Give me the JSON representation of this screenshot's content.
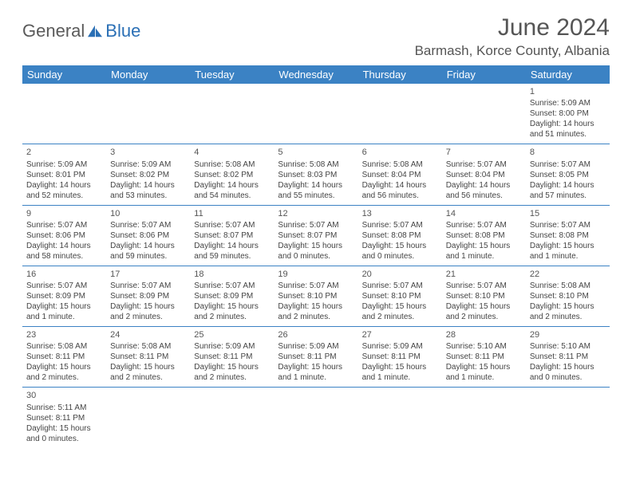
{
  "logo": {
    "part1": "General",
    "part2": "Blue"
  },
  "title": "June 2024",
  "location": "Barmash, Korce County, Albania",
  "colors": {
    "header_bg": "#3b82c4",
    "header_text": "#ffffff",
    "shade_bg": "#eef0f1",
    "border": "#3b82c4",
    "logo_gray": "#5a5a5a",
    "logo_blue": "#2a6fb5",
    "text": "#444444"
  },
  "weekdays": [
    "Sunday",
    "Monday",
    "Tuesday",
    "Wednesday",
    "Thursday",
    "Friday",
    "Saturday"
  ],
  "weeks": [
    [
      null,
      null,
      null,
      null,
      null,
      null,
      {
        "n": "1",
        "sr": "Sunrise: 5:09 AM",
        "ss": "Sunset: 8:00 PM",
        "d1": "Daylight: 14 hours",
        "d2": "and 51 minutes."
      }
    ],
    [
      {
        "n": "2",
        "sr": "Sunrise: 5:09 AM",
        "ss": "Sunset: 8:01 PM",
        "d1": "Daylight: 14 hours",
        "d2": "and 52 minutes."
      },
      {
        "n": "3",
        "sr": "Sunrise: 5:09 AM",
        "ss": "Sunset: 8:02 PM",
        "d1": "Daylight: 14 hours",
        "d2": "and 53 minutes."
      },
      {
        "n": "4",
        "sr": "Sunrise: 5:08 AM",
        "ss": "Sunset: 8:02 PM",
        "d1": "Daylight: 14 hours",
        "d2": "and 54 minutes."
      },
      {
        "n": "5",
        "sr": "Sunrise: 5:08 AM",
        "ss": "Sunset: 8:03 PM",
        "d1": "Daylight: 14 hours",
        "d2": "and 55 minutes."
      },
      {
        "n": "6",
        "sr": "Sunrise: 5:08 AM",
        "ss": "Sunset: 8:04 PM",
        "d1": "Daylight: 14 hours",
        "d2": "and 56 minutes."
      },
      {
        "n": "7",
        "sr": "Sunrise: 5:07 AM",
        "ss": "Sunset: 8:04 PM",
        "d1": "Daylight: 14 hours",
        "d2": "and 56 minutes."
      },
      {
        "n": "8",
        "sr": "Sunrise: 5:07 AM",
        "ss": "Sunset: 8:05 PM",
        "d1": "Daylight: 14 hours",
        "d2": "and 57 minutes."
      }
    ],
    [
      {
        "n": "9",
        "sr": "Sunrise: 5:07 AM",
        "ss": "Sunset: 8:06 PM",
        "d1": "Daylight: 14 hours",
        "d2": "and 58 minutes."
      },
      {
        "n": "10",
        "sr": "Sunrise: 5:07 AM",
        "ss": "Sunset: 8:06 PM",
        "d1": "Daylight: 14 hours",
        "d2": "and 59 minutes."
      },
      {
        "n": "11",
        "sr": "Sunrise: 5:07 AM",
        "ss": "Sunset: 8:07 PM",
        "d1": "Daylight: 14 hours",
        "d2": "and 59 minutes."
      },
      {
        "n": "12",
        "sr": "Sunrise: 5:07 AM",
        "ss": "Sunset: 8:07 PM",
        "d1": "Daylight: 15 hours",
        "d2": "and 0 minutes."
      },
      {
        "n": "13",
        "sr": "Sunrise: 5:07 AM",
        "ss": "Sunset: 8:08 PM",
        "d1": "Daylight: 15 hours",
        "d2": "and 0 minutes."
      },
      {
        "n": "14",
        "sr": "Sunrise: 5:07 AM",
        "ss": "Sunset: 8:08 PM",
        "d1": "Daylight: 15 hours",
        "d2": "and 1 minute."
      },
      {
        "n": "15",
        "sr": "Sunrise: 5:07 AM",
        "ss": "Sunset: 8:08 PM",
        "d1": "Daylight: 15 hours",
        "d2": "and 1 minute."
      }
    ],
    [
      {
        "n": "16",
        "sr": "Sunrise: 5:07 AM",
        "ss": "Sunset: 8:09 PM",
        "d1": "Daylight: 15 hours",
        "d2": "and 1 minute."
      },
      {
        "n": "17",
        "sr": "Sunrise: 5:07 AM",
        "ss": "Sunset: 8:09 PM",
        "d1": "Daylight: 15 hours",
        "d2": "and 2 minutes."
      },
      {
        "n": "18",
        "sr": "Sunrise: 5:07 AM",
        "ss": "Sunset: 8:09 PM",
        "d1": "Daylight: 15 hours",
        "d2": "and 2 minutes."
      },
      {
        "n": "19",
        "sr": "Sunrise: 5:07 AM",
        "ss": "Sunset: 8:10 PM",
        "d1": "Daylight: 15 hours",
        "d2": "and 2 minutes."
      },
      {
        "n": "20",
        "sr": "Sunrise: 5:07 AM",
        "ss": "Sunset: 8:10 PM",
        "d1": "Daylight: 15 hours",
        "d2": "and 2 minutes."
      },
      {
        "n": "21",
        "sr": "Sunrise: 5:07 AM",
        "ss": "Sunset: 8:10 PM",
        "d1": "Daylight: 15 hours",
        "d2": "and 2 minutes."
      },
      {
        "n": "22",
        "sr": "Sunrise: 5:08 AM",
        "ss": "Sunset: 8:10 PM",
        "d1": "Daylight: 15 hours",
        "d2": "and 2 minutes."
      }
    ],
    [
      {
        "n": "23",
        "sr": "Sunrise: 5:08 AM",
        "ss": "Sunset: 8:11 PM",
        "d1": "Daylight: 15 hours",
        "d2": "and 2 minutes."
      },
      {
        "n": "24",
        "sr": "Sunrise: 5:08 AM",
        "ss": "Sunset: 8:11 PM",
        "d1": "Daylight: 15 hours",
        "d2": "and 2 minutes."
      },
      {
        "n": "25",
        "sr": "Sunrise: 5:09 AM",
        "ss": "Sunset: 8:11 PM",
        "d1": "Daylight: 15 hours",
        "d2": "and 2 minutes."
      },
      {
        "n": "26",
        "sr": "Sunrise: 5:09 AM",
        "ss": "Sunset: 8:11 PM",
        "d1": "Daylight: 15 hours",
        "d2": "and 1 minute."
      },
      {
        "n": "27",
        "sr": "Sunrise: 5:09 AM",
        "ss": "Sunset: 8:11 PM",
        "d1": "Daylight: 15 hours",
        "d2": "and 1 minute."
      },
      {
        "n": "28",
        "sr": "Sunrise: 5:10 AM",
        "ss": "Sunset: 8:11 PM",
        "d1": "Daylight: 15 hours",
        "d2": "and 1 minute."
      },
      {
        "n": "29",
        "sr": "Sunrise: 5:10 AM",
        "ss": "Sunset: 8:11 PM",
        "d1": "Daylight: 15 hours",
        "d2": "and 0 minutes."
      }
    ],
    [
      {
        "n": "30",
        "sr": "Sunrise: 5:11 AM",
        "ss": "Sunset: 8:11 PM",
        "d1": "Daylight: 15 hours",
        "d2": "and 0 minutes."
      },
      null,
      null,
      null,
      null,
      null,
      null
    ]
  ]
}
